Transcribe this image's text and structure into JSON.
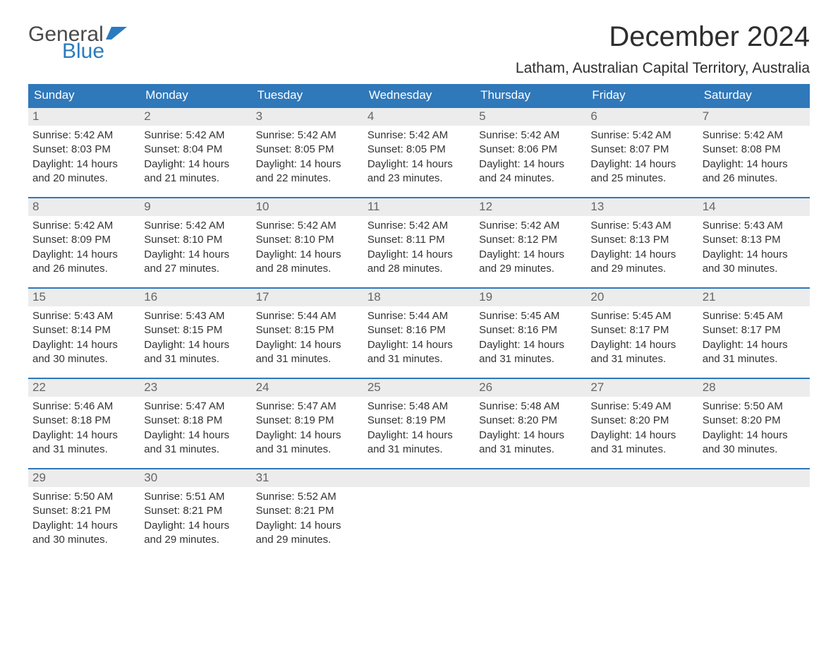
{
  "brand": {
    "word1": "General",
    "word2": "Blue",
    "flag_color": "#2b7bbf",
    "word1_color": "#4a4a4a"
  },
  "title": "December 2024",
  "location": "Latham, Australian Capital Territory, Australia",
  "colors": {
    "header_bg": "#2f78ba",
    "header_text": "#ffffff",
    "daynum_bg": "#ececec",
    "daynum_text": "#666666",
    "body_text": "#333333",
    "row_border": "#2f78ba",
    "page_bg": "#ffffff"
  },
  "typography": {
    "title_fontsize": 40,
    "location_fontsize": 21,
    "header_fontsize": 17,
    "daynum_fontsize": 17,
    "body_fontsize": 15
  },
  "day_headers": [
    "Sunday",
    "Monday",
    "Tuesday",
    "Wednesday",
    "Thursday",
    "Friday",
    "Saturday"
  ],
  "labels": {
    "sunrise": "Sunrise:",
    "sunset": "Sunset:",
    "daylight": "Daylight:"
  },
  "weeks": [
    [
      {
        "n": "1",
        "sunrise": "5:42 AM",
        "sunset": "8:03 PM",
        "daylight": "14 hours and 20 minutes."
      },
      {
        "n": "2",
        "sunrise": "5:42 AM",
        "sunset": "8:04 PM",
        "daylight": "14 hours and 21 minutes."
      },
      {
        "n": "3",
        "sunrise": "5:42 AM",
        "sunset": "8:05 PM",
        "daylight": "14 hours and 22 minutes."
      },
      {
        "n": "4",
        "sunrise": "5:42 AM",
        "sunset": "8:05 PM",
        "daylight": "14 hours and 23 minutes."
      },
      {
        "n": "5",
        "sunrise": "5:42 AM",
        "sunset": "8:06 PM",
        "daylight": "14 hours and 24 minutes."
      },
      {
        "n": "6",
        "sunrise": "5:42 AM",
        "sunset": "8:07 PM",
        "daylight": "14 hours and 25 minutes."
      },
      {
        "n": "7",
        "sunrise": "5:42 AM",
        "sunset": "8:08 PM",
        "daylight": "14 hours and 26 minutes."
      }
    ],
    [
      {
        "n": "8",
        "sunrise": "5:42 AM",
        "sunset": "8:09 PM",
        "daylight": "14 hours and 26 minutes."
      },
      {
        "n": "9",
        "sunrise": "5:42 AM",
        "sunset": "8:10 PM",
        "daylight": "14 hours and 27 minutes."
      },
      {
        "n": "10",
        "sunrise": "5:42 AM",
        "sunset": "8:10 PM",
        "daylight": "14 hours and 28 minutes."
      },
      {
        "n": "11",
        "sunrise": "5:42 AM",
        "sunset": "8:11 PM",
        "daylight": "14 hours and 28 minutes."
      },
      {
        "n": "12",
        "sunrise": "5:42 AM",
        "sunset": "8:12 PM",
        "daylight": "14 hours and 29 minutes."
      },
      {
        "n": "13",
        "sunrise": "5:43 AM",
        "sunset": "8:13 PM",
        "daylight": "14 hours and 29 minutes."
      },
      {
        "n": "14",
        "sunrise": "5:43 AM",
        "sunset": "8:13 PM",
        "daylight": "14 hours and 30 minutes."
      }
    ],
    [
      {
        "n": "15",
        "sunrise": "5:43 AM",
        "sunset": "8:14 PM",
        "daylight": "14 hours and 30 minutes."
      },
      {
        "n": "16",
        "sunrise": "5:43 AM",
        "sunset": "8:15 PM",
        "daylight": "14 hours and 31 minutes."
      },
      {
        "n": "17",
        "sunrise": "5:44 AM",
        "sunset": "8:15 PM",
        "daylight": "14 hours and 31 minutes."
      },
      {
        "n": "18",
        "sunrise": "5:44 AM",
        "sunset": "8:16 PM",
        "daylight": "14 hours and 31 minutes."
      },
      {
        "n": "19",
        "sunrise": "5:45 AM",
        "sunset": "8:16 PM",
        "daylight": "14 hours and 31 minutes."
      },
      {
        "n": "20",
        "sunrise": "5:45 AM",
        "sunset": "8:17 PM",
        "daylight": "14 hours and 31 minutes."
      },
      {
        "n": "21",
        "sunrise": "5:45 AM",
        "sunset": "8:17 PM",
        "daylight": "14 hours and 31 minutes."
      }
    ],
    [
      {
        "n": "22",
        "sunrise": "5:46 AM",
        "sunset": "8:18 PM",
        "daylight": "14 hours and 31 minutes."
      },
      {
        "n": "23",
        "sunrise": "5:47 AM",
        "sunset": "8:18 PM",
        "daylight": "14 hours and 31 minutes."
      },
      {
        "n": "24",
        "sunrise": "5:47 AM",
        "sunset": "8:19 PM",
        "daylight": "14 hours and 31 minutes."
      },
      {
        "n": "25",
        "sunrise": "5:48 AM",
        "sunset": "8:19 PM",
        "daylight": "14 hours and 31 minutes."
      },
      {
        "n": "26",
        "sunrise": "5:48 AM",
        "sunset": "8:20 PM",
        "daylight": "14 hours and 31 minutes."
      },
      {
        "n": "27",
        "sunrise": "5:49 AM",
        "sunset": "8:20 PM",
        "daylight": "14 hours and 31 minutes."
      },
      {
        "n": "28",
        "sunrise": "5:50 AM",
        "sunset": "8:20 PM",
        "daylight": "14 hours and 30 minutes."
      }
    ],
    [
      {
        "n": "29",
        "sunrise": "5:50 AM",
        "sunset": "8:21 PM",
        "daylight": "14 hours and 30 minutes."
      },
      {
        "n": "30",
        "sunrise": "5:51 AM",
        "sunset": "8:21 PM",
        "daylight": "14 hours and 29 minutes."
      },
      {
        "n": "31",
        "sunrise": "5:52 AM",
        "sunset": "8:21 PM",
        "daylight": "14 hours and 29 minutes."
      },
      null,
      null,
      null,
      null
    ]
  ]
}
